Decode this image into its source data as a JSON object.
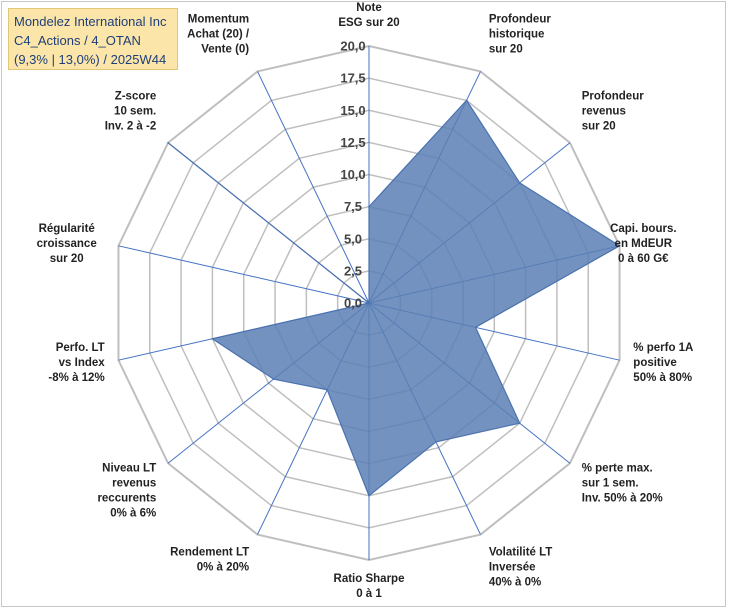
{
  "title_box": {
    "line1": "Mondelez International Inc",
    "line2": "C4_Actions / 4_OTAN",
    "line3": "(9,3% | 13,0%) / 2025W44"
  },
  "chart_data": {
    "type": "radar",
    "title": "",
    "axes": [
      [
        "Note",
        "ESG sur 20"
      ],
      [
        "Profondeur",
        "historique",
        "sur 20"
      ],
      [
        "Profondeur",
        "revenus",
        "sur 20"
      ],
      [
        "Capi. bours.",
        "en MdEUR",
        "0 à 60 G€"
      ],
      [
        "% perfo 1A",
        "positive",
        "50% à 80%"
      ],
      [
        "% perte max.",
        "sur 1 sem.",
        "Inv. 50% à 20%"
      ],
      [
        "Volatilité LT",
        "Inversée",
        "40% à 0%"
      ],
      [
        "Ratio Sharpe",
        "0 à 1"
      ],
      [
        "Rendement LT",
        "0% à 20%"
      ],
      [
        "Niveau LT",
        "revenus",
        "reccurents",
        "0% à 6%"
      ],
      [
        "Perfo. LT",
        "vs Index",
        "-8% à 12%"
      ],
      [
        "Régularité",
        "croissance",
        "sur 20"
      ],
      [
        "Z-score",
        "10 sem.",
        "Inv. 2 à -2"
      ],
      [
        "Momentum",
        "Achat (20) /",
        "Vente (0)"
      ]
    ],
    "series": [
      {
        "values": [
          7.5,
          17.5,
          15,
          20,
          8.5,
          15,
          12,
          15,
          7.5,
          9.5,
          12.5,
          0,
          20,
          0
        ]
      }
    ],
    "ylim": [
      0,
      20
    ],
    "ticks": [
      "0,0",
      "2,5",
      "5,0",
      "7,5",
      "10,0",
      "12,5",
      "15,0",
      "17,5",
      "20,0"
    ],
    "grid": true,
    "fill_color": "#5b7fb4",
    "line_color": "#4a72b0",
    "grid_color": "#bfbfbf",
    "spoke_color": "#4472c4"
  }
}
